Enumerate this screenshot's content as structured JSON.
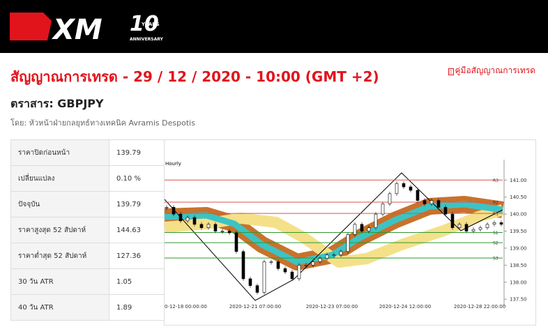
{
  "header": {
    "logo": "XM",
    "badge": "10",
    "badge_text": "YEARS",
    "badge_sub": "ANNIVERSARY"
  },
  "title": "สัญญาณการเทรด - 29 / 12 / 2020 - 10:00 (GMT +2)",
  "guide_link": "คู่มือสัญญาณการเทรด",
  "instrument": "ตราสาร: GBPJPY",
  "author": "โดย: หัวหน้าฝ่ายกลยุทธ์ทางเทคนิค Avramis Despotis",
  "table": {
    "rows": [
      [
        "ราคาปิดก่อนหน้า",
        "139.79"
      ],
      [
        "เปลี่ยนแปลง",
        "0.10 %"
      ],
      [
        "ปัจจุบัน",
        "139.79"
      ],
      [
        "ราคาสูงสุด 52 สัปดาห์",
        "144.63"
      ],
      [
        "ราคาต่ำสุด 52 สัปดาห์",
        "127.36"
      ],
      [
        "30 วัน ATR",
        "1.05"
      ],
      [
        "40 วัน ATR",
        "1.89"
      ]
    ]
  },
  "chart_data": {
    "type": "candlestick",
    "title": "Hourly",
    "values": [
      140.2,
      140.0,
      139.8,
      139.9,
      139.7,
      139.6,
      139.7,
      139.5,
      139.5,
      139.45,
      138.9,
      138.1,
      137.9,
      137.7,
      138.6,
      138.6,
      138.4,
      138.3,
      138.1,
      138.5,
      138.5,
      138.6,
      138.7,
      138.8,
      138.8,
      138.9,
      139.4,
      139.7,
      139.5,
      139.6,
      140.0,
      140.3,
      140.6,
      140.9,
      140.8,
      140.7,
      140.4,
      140.3,
      140.4,
      140.2,
      140.0,
      139.6,
      139.7,
      139.5,
      139.55,
      139.6,
      139.7,
      139.75,
      139.7
    ],
    "ylim": [
      137.3,
      141.6
    ],
    "yticks": [
      {
        "value": 141,
        "label": "141.00"
      },
      {
        "value": 140.5,
        "label": "140.50"
      },
      {
        "value": 140,
        "label": "140.00"
      },
      {
        "value": 139.5,
        "label": "139.50"
      },
      {
        "value": 139,
        "label": "139.00"
      },
      {
        "value": 138.5,
        "label": "138.50"
      },
      {
        "value": 138,
        "label": "138.00"
      },
      {
        "value": 137.5,
        "label": "137.50"
      }
    ],
    "levels": [
      {
        "name": "R3",
        "value": 141.0,
        "color": "#d9534f"
      },
      {
        "name": "R2",
        "value": 140.35,
        "color": "#d9534f"
      },
      {
        "name": "R1",
        "value": 140.02,
        "color": "#d9534f"
      },
      {
        "name": "S1",
        "value": 139.46,
        "color": "#2e9a2e"
      },
      {
        "name": "S2",
        "value": 139.16,
        "color": "#2e9a2e"
      },
      {
        "name": "S3",
        "value": 138.71,
        "color": "#2e9a2e"
      }
    ],
    "x_labels": [
      "0-12-18 00:00:00",
      "2020-12-21 07:00:00",
      "2020-12-23 07:00:00",
      "2020-12-24 12:00:00",
      "2020-12-28 22:00:00"
    ]
  }
}
